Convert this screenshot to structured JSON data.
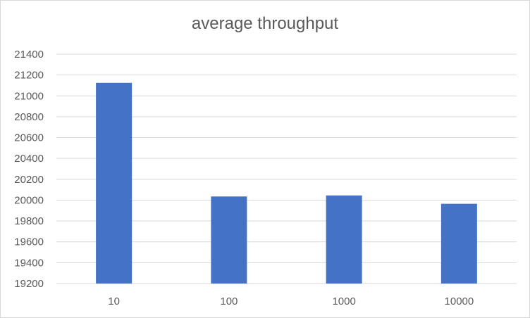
{
  "chart_data": {
    "type": "bar",
    "title": "average throughput",
    "xlabel": "",
    "ylabel": "",
    "categories": [
      "10",
      "100",
      "1000",
      "10000"
    ],
    "values": [
      21125,
      20035,
      20045,
      19965
    ],
    "ylim": [
      19200,
      21400
    ],
    "yticks": [
      "19200",
      "19400",
      "19600",
      "19800",
      "20000",
      "20200",
      "20400",
      "20600",
      "20800",
      "21000",
      "21200",
      "21400"
    ],
    "grid": true,
    "legend": "none",
    "bar_color": "#4472C4",
    "grid_color": "#d9d9d9"
  }
}
